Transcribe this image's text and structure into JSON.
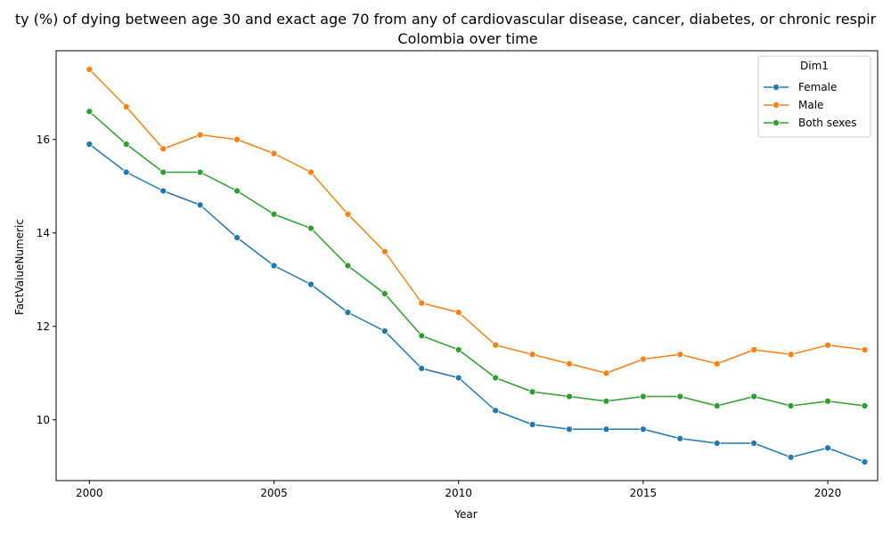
{
  "chart_data": {
    "type": "line",
    "title_line1": "ty (%) of dying between age 30 and exact age 70 from any of cardiovascular disease, cancer, diabetes, or chronic respir",
    "title_line2": "Colombia over time",
    "xlabel": "Year",
    "ylabel": "FactValueNumeric",
    "xlim": [
      1999.1,
      2021.35
    ],
    "ylim": [
      8.7,
      17.9
    ],
    "x_ticks": [
      2000,
      2005,
      2010,
      2015,
      2020
    ],
    "y_ticks": [
      10,
      12,
      14,
      16
    ],
    "grid": false,
    "legend": {
      "title": "Dim1",
      "placement": "top-right"
    },
    "x": [
      2000,
      2001,
      2002,
      2003,
      2004,
      2005,
      2006,
      2007,
      2008,
      2009,
      2010,
      2011,
      2012,
      2013,
      2014,
      2015,
      2016,
      2017,
      2018,
      2019,
      2020,
      2021
    ],
    "series": [
      {
        "name": "Female",
        "color": "#1f77b4",
        "values": [
          15.9,
          15.3,
          14.9,
          14.6,
          13.9,
          13.3,
          12.9,
          12.3,
          11.9,
          11.1,
          10.9,
          10.2,
          9.9,
          9.8,
          9.8,
          9.8,
          9.6,
          9.5,
          9.5,
          9.2,
          9.4,
          9.1
        ]
      },
      {
        "name": "Male",
        "color": "#ff7f0e",
        "values": [
          17.5,
          16.7,
          15.8,
          16.1,
          16.0,
          15.7,
          15.3,
          14.4,
          13.6,
          12.5,
          12.3,
          11.6,
          11.4,
          11.2,
          11.0,
          11.3,
          11.4,
          11.2,
          11.5,
          11.4,
          11.6,
          11.5
        ]
      },
      {
        "name": "Both sexes",
        "color": "#2ca02c",
        "values": [
          16.6,
          15.9,
          15.3,
          15.3,
          14.9,
          14.4,
          14.1,
          13.3,
          12.7,
          11.8,
          11.5,
          10.9,
          10.6,
          10.5,
          10.4,
          10.5,
          10.5,
          10.3,
          10.5,
          10.3,
          10.4,
          10.3
        ]
      }
    ]
  }
}
